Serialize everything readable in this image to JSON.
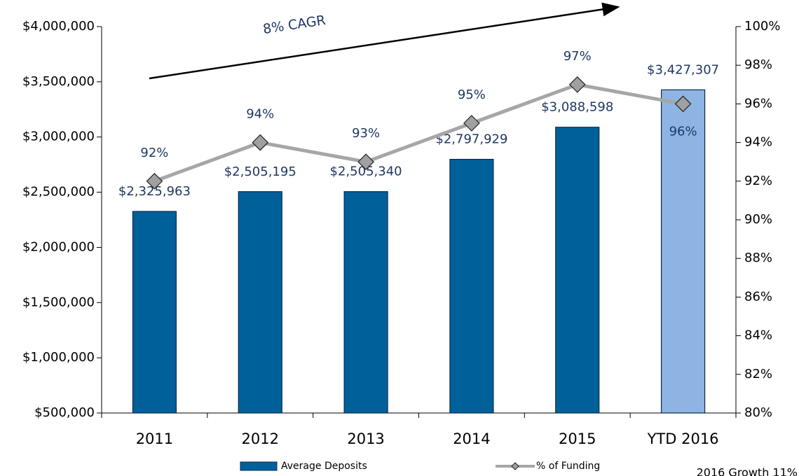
{
  "chart_data": {
    "type": "bar-line",
    "categories": [
      "2011",
      "2012",
      "2013",
      "2014",
      "2015",
      "YTD 2016"
    ],
    "series": [
      {
        "name": "Average Deposits",
        "type": "bar",
        "color": "#00609a",
        "colors": [
          "#00609a",
          "#00609a",
          "#00609a",
          "#00609a",
          "#00609a",
          "#8db4e2"
        ],
        "values": [
          2325963,
          2505195,
          2505340,
          2797929,
          3088598,
          3427307
        ],
        "value_labels": [
          "$2,325,963",
          "$2,505,195",
          "$2,505,340",
          "$2,797,929",
          "$3,088,598",
          "$3,427,307"
        ]
      },
      {
        "name": "% of Funding",
        "type": "line",
        "axis": "y2",
        "color": "#a6a6a6",
        "marker_color": "#a0a0a0",
        "values": [
          92,
          94,
          93,
          95,
          97,
          96
        ],
        "value_labels": [
          "92%",
          "94%",
          "93%",
          "95%",
          "97%",
          "96%"
        ]
      }
    ],
    "ylim": [
      500000,
      4000000
    ],
    "yticks": [
      {
        "value": 500000,
        "label": "$500,000"
      },
      {
        "value": 1000000,
        "label": "$1,000,000"
      },
      {
        "value": 1500000,
        "label": "$1,500,000"
      },
      {
        "value": 2000000,
        "label": "$2,000,000"
      },
      {
        "value": 2500000,
        "label": "$2,500,000"
      },
      {
        "value": 3000000,
        "label": "$3,000,000"
      },
      {
        "value": 3500000,
        "label": "$3,500,000"
      },
      {
        "value": 4000000,
        "label": "$4,000,000"
      }
    ],
    "y2lim": [
      80,
      100
    ],
    "y2ticks": [
      {
        "value": 80,
        "label": "80%"
      },
      {
        "value": 82,
        "label": "82%"
      },
      {
        "value": 84,
        "label": "84%"
      },
      {
        "value": 86,
        "label": "86%"
      },
      {
        "value": 88,
        "label": "88%"
      },
      {
        "value": 90,
        "label": "90%"
      },
      {
        "value": 92,
        "label": "92%"
      },
      {
        "value": 94,
        "label": "94%"
      },
      {
        "value": 96,
        "label": "96%"
      },
      {
        "value": 98,
        "label": "98%"
      },
      {
        "value": 100,
        "label": "100%"
      }
    ],
    "annotations": [
      "8% CAGR",
      "2016 Growth 11%"
    ],
    "legend": "bottom"
  }
}
